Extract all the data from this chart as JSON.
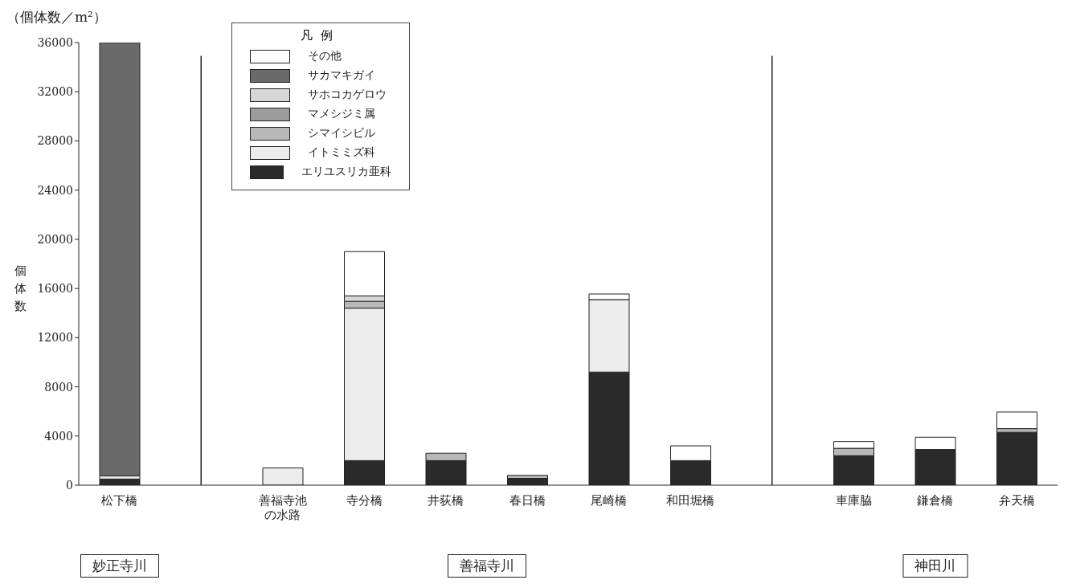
{
  "chart_data": {
    "type": "bar",
    "stacked": true,
    "title": "（個体数／m²）",
    "ylabel": "個体数",
    "legend_title": "凡例",
    "legend": "top left",
    "categories": [
      "松下橋",
      null,
      "善福寺池の水路",
      "寺分橋",
      "井荻橋",
      "春日橋",
      "尾崎橋",
      "和田堀橋",
      null,
      "車庫脇",
      "鎌倉橋",
      "弁天橋"
    ],
    "ylim": [
      0,
      36000
    ],
    "yticks": [
      0,
      4000,
      8000,
      12000,
      16000,
      20000,
      24000,
      28000,
      32000,
      36000
    ],
    "series": [
      {
        "name": "エリユスリカ亜科",
        "color": "#2a2a2a",
        "values": [
          500,
          null,
          null,
          2000,
          2000,
          550,
          9200,
          2000,
          null,
          2400,
          2900,
          4300
        ]
      },
      {
        "name": "イトミミズ科",
        "color": "#ececec",
        "values": [
          250,
          null,
          1400,
          12400,
          null,
          null,
          5900,
          null,
          null,
          null,
          null,
          null
        ]
      },
      {
        "name": "シマイシビル",
        "color": "#b8b8b8",
        "values": [
          null,
          null,
          null,
          550,
          600,
          250,
          null,
          null,
          null,
          600,
          null,
          300
        ]
      },
      {
        "name": "マメシジミ属",
        "color": "#9c9c9c",
        "values": [
          null,
          null,
          null,
          null,
          null,
          null,
          null,
          null,
          null,
          null,
          null,
          null
        ]
      },
      {
        "name": "サホコカゲロウ",
        "color": "#d6d6d6",
        "values": [
          null,
          null,
          null,
          450,
          null,
          null,
          null,
          null,
          null,
          null,
          null,
          null
        ]
      },
      {
        "name": "サカマキガイ",
        "color": "#6a6a6a",
        "values": [
          35250,
          null,
          null,
          null,
          null,
          null,
          null,
          null,
          null,
          null,
          null,
          null
        ]
      },
      {
        "name": "その他",
        "color": "#ffffff",
        "values": [
          null,
          null,
          null,
          3600,
          null,
          null,
          450,
          1200,
          null,
          550,
          1000,
          1350
        ]
      }
    ],
    "annotations": [
      "妙正寺川",
      "善福寺川",
      "神田川"
    ]
  }
}
